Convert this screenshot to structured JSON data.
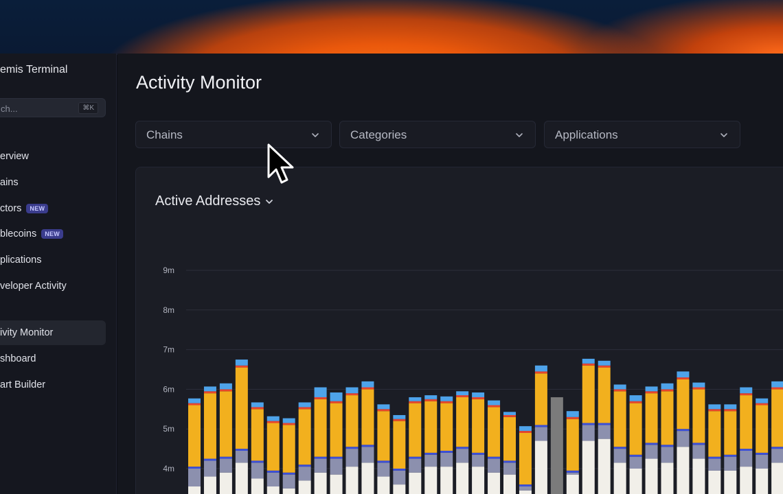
{
  "app": {
    "title": "emis Terminal"
  },
  "search": {
    "placeholder": "ch...",
    "shortcut": "⌘K"
  },
  "nav": {
    "items": [
      {
        "label": "erview",
        "badge": ""
      },
      {
        "label": "ains",
        "badge": ""
      },
      {
        "label": "ctors",
        "badge": "NEW"
      },
      {
        "label": "blecoins",
        "badge": "NEW"
      },
      {
        "label": "plications",
        "badge": ""
      },
      {
        "label": "veloper Activity",
        "badge": ""
      }
    ],
    "items2": [
      {
        "label": "ivity Monitor",
        "active": true
      },
      {
        "label": "shboard",
        "active": false
      },
      {
        "label": "art Builder",
        "active": false
      }
    ]
  },
  "page": {
    "title": "Activity Monitor"
  },
  "filters": [
    {
      "label": "Chains"
    },
    {
      "label": "Categories"
    },
    {
      "label": "Applications"
    }
  ],
  "card": {
    "metric_label": "Active Addresses"
  },
  "colors": {
    "white": "#f1efe9",
    "gray": "#8c90ae",
    "blue_dark": "#3b4fd9",
    "orange": "#f2b01e",
    "red": "#e8452c",
    "blue_light": "#4ea3ea",
    "highlight": "#7b7b7b"
  },
  "chart_data": {
    "type": "bar",
    "stacked": true,
    "y_ticks": [
      "9m",
      "8m",
      "7m",
      "6m",
      "5m",
      "4m"
    ],
    "ylim_visible": [
      3.5,
      9.3
    ],
    "grid": true,
    "series_colors": [
      "#f1efe9",
      "#8c90ae",
      "#3b4fd9",
      "#f2b01e",
      "#e8452c",
      "#4ea3ea"
    ],
    "bars": [
      {
        "stack": [
          3.55,
          0.45,
          0.05,
          1.55,
          0.05,
          0.12
        ]
      },
      {
        "stack": [
          3.8,
          0.4,
          0.05,
          1.65,
          0.05,
          0.12
        ]
      },
      {
        "stack": [
          3.9,
          0.35,
          0.05,
          1.65,
          0.05,
          0.15
        ]
      },
      {
        "stack": [
          4.15,
          0.3,
          0.05,
          2.05,
          0.05,
          0.15
        ]
      },
      {
        "stack": [
          3.75,
          0.4,
          0.05,
          1.3,
          0.05,
          0.12
        ]
      },
      {
        "stack": [
          3.55,
          0.35,
          0.05,
          1.2,
          0.05,
          0.12
        ]
      },
      {
        "stack": [
          3.5,
          0.35,
          0.05,
          1.2,
          0.05,
          0.12
        ]
      },
      {
        "stack": [
          3.7,
          0.35,
          0.05,
          1.4,
          0.05,
          0.12
        ]
      },
      {
        "stack": [
          3.9,
          0.35,
          0.05,
          1.45,
          0.05,
          0.25
        ]
      },
      {
        "stack": [
          3.85,
          0.4,
          0.05,
          1.35,
          0.05,
          0.22
        ]
      },
      {
        "stack": [
          4.05,
          0.45,
          0.05,
          1.3,
          0.05,
          0.15
        ]
      },
      {
        "stack": [
          4.15,
          0.4,
          0.05,
          1.4,
          0.05,
          0.15
        ]
      },
      {
        "stack": [
          3.8,
          0.35,
          0.05,
          1.25,
          0.05,
          0.12
        ]
      },
      {
        "stack": [
          3.6,
          0.35,
          0.05,
          1.2,
          0.05,
          0.1
        ]
      },
      {
        "stack": [
          3.9,
          0.35,
          0.05,
          1.35,
          0.05,
          0.1
        ]
      },
      {
        "stack": [
          4.05,
          0.3,
          0.05,
          1.3,
          0.05,
          0.1
        ]
      },
      {
        "stack": [
          4.05,
          0.35,
          0.05,
          1.2,
          0.05,
          0.12
        ]
      },
      {
        "stack": [
          4.15,
          0.35,
          0.05,
          1.25,
          0.05,
          0.1
        ]
      },
      {
        "stack": [
          4.05,
          0.3,
          0.05,
          1.35,
          0.05,
          0.12
        ]
      },
      {
        "stack": [
          3.9,
          0.35,
          0.05,
          1.25,
          0.05,
          0.12
        ]
      },
      {
        "stack": [
          3.85,
          0.3,
          0.05,
          1.1,
          0.05,
          0.08
        ]
      },
      {
        "stack": [
          3.45,
          0.1,
          0.05,
          1.3,
          0.05,
          0.12
        ]
      },
      {
        "stack": [
          4.7,
          0.35,
          0.05,
          1.3,
          0.05,
          0.15
        ]
      },
      {
        "stack": [
          5.8,
          0,
          0,
          0,
          0,
          0
        ],
        "highlighted": true
      },
      {
        "stack": [
          3.85,
          0.05,
          0.05,
          1.3,
          0.05,
          0.15
        ]
      },
      {
        "stack": [
          4.7,
          0.4,
          0.05,
          1.45,
          0.05,
          0.12
        ]
      },
      {
        "stack": [
          4.75,
          0.35,
          0.05,
          1.4,
          0.05,
          0.12
        ]
      },
      {
        "stack": [
          4.15,
          0.35,
          0.05,
          1.4,
          0.05,
          0.12
        ]
      },
      {
        "stack": [
          4.0,
          0.3,
          0.05,
          1.3,
          0.05,
          0.15
        ]
      },
      {
        "stack": [
          4.25,
          0.35,
          0.05,
          1.25,
          0.05,
          0.12
        ]
      },
      {
        "stack": [
          4.15,
          0.4,
          0.05,
          1.35,
          0.05,
          0.15
        ]
      },
      {
        "stack": [
          4.55,
          0.4,
          0.05,
          1.25,
          0.05,
          0.15
        ]
      },
      {
        "stack": [
          4.25,
          0.35,
          0.05,
          1.35,
          0.05,
          0.12
        ]
      },
      {
        "stack": [
          3.95,
          0.3,
          0.05,
          1.15,
          0.05,
          0.12
        ]
      },
      {
        "stack": [
          3.95,
          0.35,
          0.05,
          1.1,
          0.05,
          0.12
        ]
      },
      {
        "stack": [
          4.05,
          0.4,
          0.05,
          1.35,
          0.05,
          0.15
        ]
      },
      {
        "stack": [
          4.0,
          0.35,
          0.05,
          1.2,
          0.05,
          0.12
        ]
      },
      {
        "stack": [
          4.15,
          0.35,
          0.05,
          1.45,
          0.05,
          0.15
        ]
      }
    ]
  }
}
